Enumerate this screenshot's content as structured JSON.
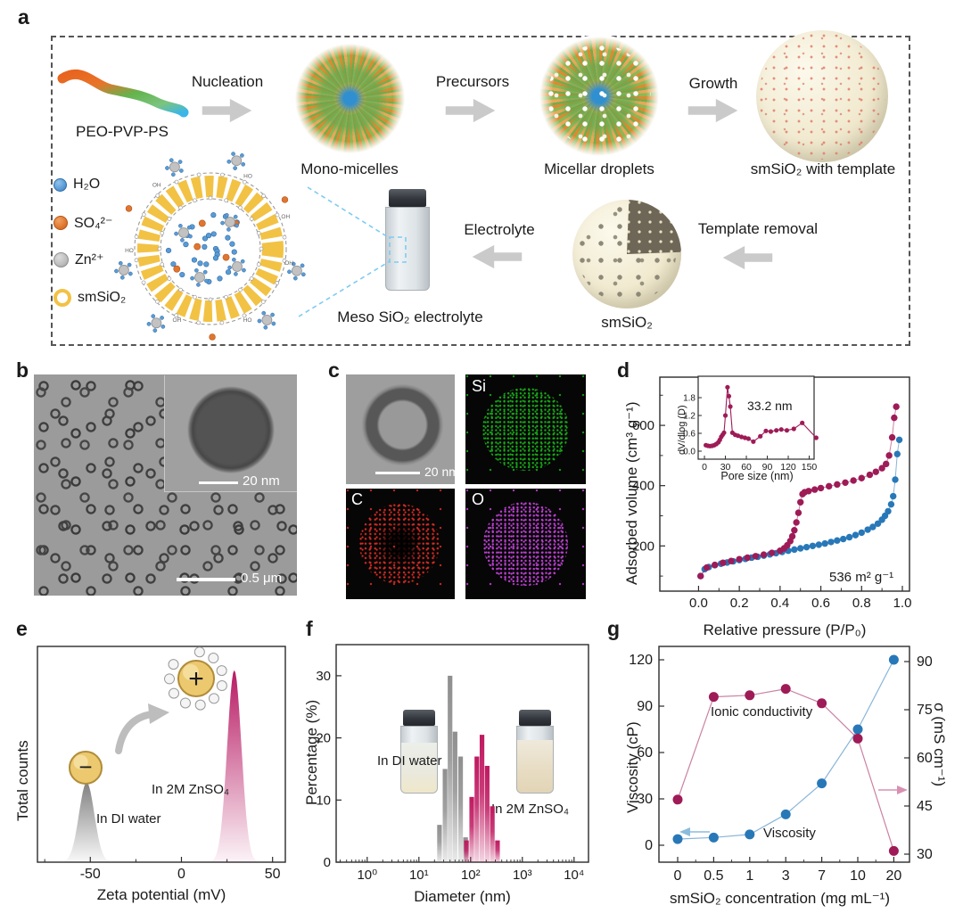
{
  "panels": {
    "a": "a",
    "b": "b",
    "c": "c",
    "d": "d",
    "e": "e",
    "f": "f",
    "g": "g"
  },
  "panel_a": {
    "polymer_label": "PEO-PVP-PS",
    "step_nucleation": "Nucleation",
    "label_mono_micelles": "Mono-micelles",
    "step_precursors": "Precursors",
    "label_micellar_droplets": "Micellar droplets",
    "step_growth": "Growth",
    "label_smsio2_template": "smSiO₂ with template",
    "step_template_removal": "Template removal",
    "label_smsio2": "smSiO₂",
    "step_electrolyte": "Electrolyte",
    "label_meso_electrolyte": "Meso SiO₂ electrolyte",
    "legend": [
      {
        "name": "water",
        "label": "H₂O"
      },
      {
        "name": "sulfate",
        "label": "SO₄²⁻"
      },
      {
        "name": "zinc",
        "label": "Zn²⁺"
      },
      {
        "name": "smsio2",
        "label": "smSiO₂"
      }
    ]
  },
  "panel_b": {
    "inset_scale": "20 nm",
    "scale": "0.5 μm"
  },
  "panel_c": {
    "scale": "20 nm",
    "maps": [
      {
        "label": "Si",
        "color": "#17a617"
      },
      {
        "label": "C",
        "color": "#d42a22"
      },
      {
        "label": "O",
        "color": "#bb3fd0"
      }
    ]
  },
  "chart_data": [
    {
      "id": "adsorption-isotherm",
      "type": "scatter",
      "xlabel": "Relative pressure (P/P₀)",
      "ylabel": "Adsorbed volume (cm³ g⁻¹)",
      "annotation": "536 m² g⁻¹",
      "xlim": [
        -0.19,
        1.035
      ],
      "ylim": [
        50,
        760
      ],
      "xticks": [
        0.0,
        0.2,
        0.4,
        0.6,
        0.8,
        1.0
      ],
      "xticklabels": [
        "0.0",
        "0.2",
        "0.4",
        "0.6",
        "0.8",
        "1.0"
      ],
      "xminor": [
        0.1,
        0.3,
        0.5,
        0.7,
        0.9
      ],
      "yticks": [
        200,
        400,
        600
      ],
      "yticklabels": [
        "200",
        "400",
        "600"
      ],
      "yminor": [
        100,
        300,
        500,
        700
      ],
      "series": [
        {
          "name": "adsorption",
          "color": "#2878b8",
          "x": [
            0.01,
            0.03,
            0.05,
            0.08,
            0.11,
            0.14,
            0.17,
            0.2,
            0.23,
            0.26,
            0.29,
            0.32,
            0.35,
            0.38,
            0.41,
            0.44,
            0.47,
            0.5,
            0.53,
            0.56,
            0.59,
            0.62,
            0.65,
            0.68,
            0.71,
            0.74,
            0.77,
            0.8,
            0.83,
            0.855,
            0.88,
            0.9,
            0.915,
            0.93,
            0.945,
            0.955,
            0.965,
            0.975,
            0.985
          ],
          "y": [
            100,
            123,
            130,
            136,
            141,
            145,
            149,
            153,
            157,
            161,
            164,
            168,
            172,
            176,
            180,
            184,
            188,
            192,
            196,
            200,
            204,
            208,
            213,
            218,
            223,
            229,
            236,
            244,
            254,
            263,
            274,
            287,
            300,
            315,
            338,
            365,
            420,
            505,
            552
          ]
        },
        {
          "name": "desorption",
          "color": "#9e1b57",
          "x": [
            0.01,
            0.04,
            0.08,
            0.12,
            0.16,
            0.2,
            0.24,
            0.28,
            0.32,
            0.36,
            0.4,
            0.42,
            0.435,
            0.45,
            0.46,
            0.47,
            0.48,
            0.49,
            0.5,
            0.51,
            0.52,
            0.54,
            0.57,
            0.6,
            0.64,
            0.68,
            0.72,
            0.76,
            0.8,
            0.84,
            0.87,
            0.9,
            0.92,
            0.935,
            0.95,
            0.96,
            0.97
          ],
          "y": [
            100,
            128,
            137,
            144,
            150,
            156,
            161,
            166,
            171,
            177,
            184,
            192,
            202,
            216,
            232,
            252,
            278,
            310,
            345,
            372,
            378,
            382,
            387,
            392,
            398,
            404,
            410,
            417,
            425,
            436,
            446,
            458,
            472,
            500,
            560,
            625,
            662
          ]
        }
      ]
    },
    {
      "id": "pore-size-distribution",
      "type": "line-scatter",
      "xlabel": "Pore size (nm)",
      "ylabel": "dV/dlog (D)",
      "annotation": "33.2 nm",
      "xlim": [
        -9,
        157
      ],
      "ylim": [
        -0.27,
        2.52
      ],
      "xticks": [
        0,
        30,
        60,
        90,
        120,
        150
      ],
      "xticklabels": [
        "0",
        "30",
        "60",
        "90",
        "120",
        "150"
      ],
      "yticks": [
        0.0,
        0.6,
        1.2,
        1.8
      ],
      "yticklabels": [
        "0.0",
        "0.6",
        "1.2",
        "1.8"
      ],
      "series": [
        {
          "name": "pore-size",
          "color": "#9e1b57",
          "x": [
            2,
            5,
            8,
            11,
            14,
            17,
            20,
            22,
            24,
            26,
            28,
            30,
            33,
            35,
            37,
            40,
            44,
            48,
            53,
            58,
            63,
            70,
            80,
            88,
            95,
            103,
            110,
            118,
            128,
            140,
            160
          ],
          "y": [
            0.2,
            0.18,
            0.17,
            0.18,
            0.2,
            0.24,
            0.3,
            0.38,
            0.48,
            0.55,
            0.62,
            1.2,
            2.15,
            1.85,
            1.5,
            0.62,
            0.55,
            0.52,
            0.48,
            0.45,
            0.42,
            0.32,
            0.5,
            0.68,
            0.66,
            0.7,
            0.73,
            0.7,
            0.75,
            0.95,
            0.45
          ]
        }
      ]
    },
    {
      "id": "zeta-potential",
      "type": "distribution-peaks",
      "xlabel": "Zeta potential (mV)",
      "ylabel": "Total counts",
      "xlim": [
        -79,
        57
      ],
      "xticks": [
        -50,
        0,
        50
      ],
      "xticklabels": [
        "-50",
        "0",
        "50"
      ],
      "xminor": [
        -75,
        -25,
        25
      ],
      "peaks": [
        {
          "label": "In DI water",
          "center_mV": -52,
          "sigma_mV": 4.2,
          "height_frac": 0.37,
          "color": "#7d7d7d"
        },
        {
          "label": "In 2M ZnSO₄",
          "center_mV": 29,
          "sigma_mV": 3.9,
          "height_frac": 0.89,
          "color": "#b5145f"
        }
      ]
    },
    {
      "id": "dls-diameter",
      "type": "histogram-log",
      "xlabel": "Diameter (nm)",
      "ylabel": "Percentage (%)",
      "xticklabels": [
        "10⁰",
        "10¹",
        "10²",
        "10³",
        "10⁴"
      ],
      "yticks": [
        0,
        10,
        20,
        30
      ],
      "yticklabels": [
        "0",
        "10",
        "20",
        "30"
      ],
      "series": [
        {
          "name": "In DI water",
          "color": "#8f8f8f",
          "bins_nm": [
            25,
            32,
            40,
            50,
            64,
            80
          ],
          "values_pct": [
            6,
            15,
            30,
            21,
            17,
            4
          ]
        },
        {
          "name": "In 2M ZnSO₄",
          "color": "#bf1960",
          "bins_nm": [
            83,
            105,
            132,
            166,
            209,
            263,
            331
          ],
          "values_pct": [
            3.5,
            10.5,
            17,
            20.5,
            15.5,
            9,
            3.5
          ]
        }
      ]
    },
    {
      "id": "viscosity-conductivity",
      "type": "dual-axis-line",
      "xlabel": "smSiO₂ concentration (mg mL⁻¹)",
      "ylabel_left": "Viscosity (cP)",
      "ylabel_right": "σ (mS cm⁻¹)",
      "categories": [
        "0",
        "0.5",
        "1",
        "3",
        "7",
        "10",
        "20"
      ],
      "yticks_left": [
        0,
        30,
        60,
        90,
        120
      ],
      "yticks_right": [
        30,
        45,
        60,
        75,
        90
      ],
      "series": [
        {
          "name": "Viscosity",
          "axis": "left",
          "color": "#2878b8",
          "values": [
            4,
            5,
            7,
            20,
            40,
            75,
            120
          ]
        },
        {
          "name": "Ionic conductivity",
          "axis": "right",
          "color": "#9e1b57",
          "values": [
            47,
            79,
            79.5,
            81.5,
            77,
            66,
            31
          ]
        }
      ]
    }
  ]
}
